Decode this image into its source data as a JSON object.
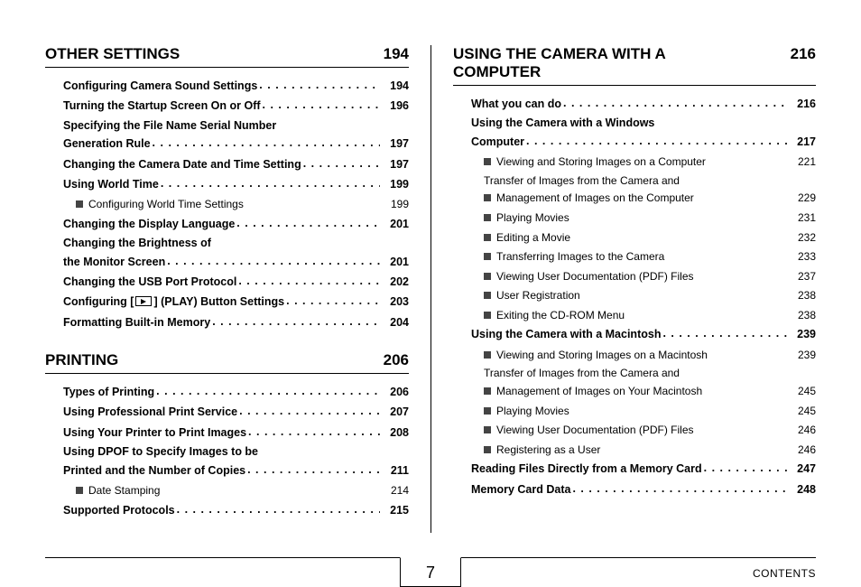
{
  "page_number": "7",
  "footer_label": "CONTENTS",
  "dot_fill": ". . . . . . . . . . . . . . . . . . . . . . . . . . . . . . . . . . . . . . . . . . . . . .",
  "left": {
    "sections": [
      {
        "title": "OTHER SETTINGS",
        "page": "194",
        "entries": [
          {
            "bold": true,
            "label": "Configuring Camera Sound Settings",
            "page": "194",
            "dots": true
          },
          {
            "bold": true,
            "label": "Turning the Startup Screen On or Off",
            "page": "196",
            "dots": true
          },
          {
            "bold": true,
            "label_lines": [
              "Specifying the File Name Serial Number",
              "Generation Rule"
            ],
            "page": "197",
            "dots": true
          },
          {
            "bold": true,
            "label": "Changing the Camera Date and Time Setting",
            "page": "197",
            "dots": true
          },
          {
            "bold": true,
            "label": "Using World Time",
            "page": "199",
            "dots": true
          },
          {
            "sub": true,
            "label": "Configuring World Time Settings",
            "page": "199"
          },
          {
            "bold": true,
            "label": "Changing the Display Language",
            "page": "201",
            "dots": true
          },
          {
            "bold": true,
            "label_lines": [
              "Changing the Brightness of",
              "the Monitor Screen"
            ],
            "page": "201",
            "dots": true
          },
          {
            "bold": true,
            "label": "Changing the USB Port Protocol",
            "page": "202",
            "dots": true
          },
          {
            "bold": true,
            "label_play": true,
            "page": "203",
            "dots": true,
            "label_before": "Configuring [",
            "label_after": "] (PLAY) Button Settings"
          },
          {
            "bold": true,
            "label": "Formatting Built-in Memory",
            "page": "204",
            "dots": true
          }
        ]
      },
      {
        "title": "PRINTING",
        "page": "206",
        "entries": [
          {
            "bold": true,
            "label": "Types of Printing",
            "page": "206",
            "dots": true
          },
          {
            "bold": true,
            "label": "Using Professional Print Service",
            "page": "207",
            "dots": true
          },
          {
            "bold": true,
            "label": "Using Your Printer to Print Images",
            "page": "208",
            "dots": true
          },
          {
            "bold": true,
            "label_lines": [
              "Using DPOF to Specify Images to be",
              "Printed and the Number of Copies"
            ],
            "page": "211",
            "dots": true
          },
          {
            "sub": true,
            "label": "Date Stamping",
            "page": "214"
          },
          {
            "bold": true,
            "label": "Supported Protocols",
            "page": "215",
            "dots": true
          }
        ]
      }
    ]
  },
  "right": {
    "sections": [
      {
        "title_lines": [
          "USING THE CAMERA WITH A",
          "COMPUTER"
        ],
        "page": "216",
        "entries": [
          {
            "bold": true,
            "label": "What you can do",
            "page": "216",
            "dots": true
          },
          {
            "bold": true,
            "label_lines": [
              "Using the Camera with a Windows",
              "Computer"
            ],
            "page": "217",
            "dots": true
          },
          {
            "sub": true,
            "label": "Viewing and Storing Images on a Computer",
            "page": "221"
          },
          {
            "sub": true,
            "label_lines": [
              "Transfer of Images from the Camera and",
              "Management of Images on the Computer"
            ],
            "page": "229"
          },
          {
            "sub": true,
            "label": "Playing Movies",
            "page": "231"
          },
          {
            "sub": true,
            "label": "Editing a Movie",
            "page": "232"
          },
          {
            "sub": true,
            "label": "Transferring Images to the Camera",
            "page": "233"
          },
          {
            "sub": true,
            "label": "Viewing User Documentation (PDF) Files",
            "page": "237"
          },
          {
            "sub": true,
            "label": "User Registration",
            "page": "238"
          },
          {
            "sub": true,
            "label": "Exiting the CD-ROM Menu",
            "page": "238"
          },
          {
            "bold": true,
            "label": "Using the Camera with a Macintosh",
            "page": "239",
            "dots": true
          },
          {
            "sub": true,
            "label": "Viewing and Storing Images on a Macintosh",
            "page": "239"
          },
          {
            "sub": true,
            "label_lines": [
              "Transfer of Images from the Camera and",
              "Management of Images on Your Macintosh"
            ],
            "page": "245"
          },
          {
            "sub": true,
            "label": "Playing Movies",
            "page": "245"
          },
          {
            "sub": true,
            "label": "Viewing User Documentation (PDF) Files",
            "page": "246"
          },
          {
            "sub": true,
            "label": "Registering as a User",
            "page": "246"
          },
          {
            "bold": true,
            "label": "Reading Files Directly from a Memory Card",
            "page": "247",
            "dots": true
          },
          {
            "bold": true,
            "label": "Memory Card Data",
            "page": "248",
            "dots": true
          }
        ]
      }
    ]
  }
}
